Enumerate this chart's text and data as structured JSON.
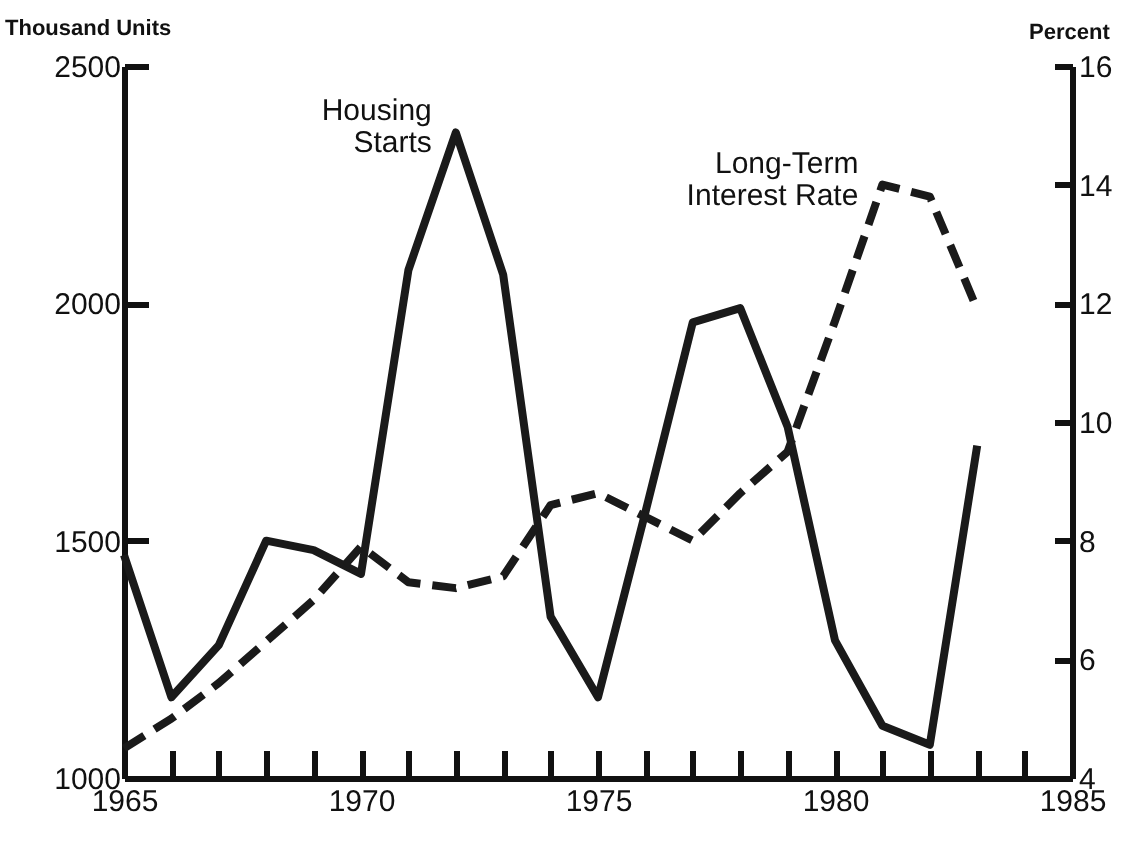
{
  "chart_data": {
    "type": "line",
    "x": [
      1965,
      1966,
      1967,
      1968,
      1969,
      1970,
      1971,
      1972,
      1973,
      1974,
      1975,
      1976,
      1977,
      1978,
      1979,
      1980,
      1981,
      1982,
      1983
    ],
    "series": [
      {
        "name": "Housing Starts",
        "color": "#1a1a1a",
        "line_style": "solid",
        "values": [
          1470,
          1170,
          1280,
          1500,
          1480,
          1430,
          2070,
          2360,
          2060,
          1340,
          1170,
          1560,
          1960,
          1990,
          1740,
          1290,
          1110,
          1070,
          1700
        ]
      },
      {
        "name": "Long-Term Interest Rate",
        "color": "#1a1a1a",
        "line_style": "dashed",
        "axis": "y2",
        "values": [
          4.5,
          5.0,
          5.6,
          6.3,
          7.0,
          7.9,
          7.3,
          7.2,
          7.4,
          8.6,
          8.8,
          8.4,
          8.0,
          8.8,
          9.5,
          11.7,
          14.0,
          13.8,
          11.9
        ]
      }
    ],
    "ylabel": "Thousand Units",
    "y2label": "Percent",
    "xlim": [
      1965,
      1985
    ],
    "xticks": [
      1965,
      {
        "value": 1966,
        "label": null
      },
      {
        "value": 1967,
        "label": null
      },
      {
        "value": 1968,
        "label": null
      },
      {
        "value": 1969,
        "label": null
      },
      1970,
      {
        "value": 1971,
        "label": null
      },
      {
        "value": 1972,
        "label": null
      },
      {
        "value": 1973,
        "label": null
      },
      {
        "value": 1974,
        "label": null
      },
      1975,
      {
        "value": 1976,
        "label": null
      },
      {
        "value": 1977,
        "label": null
      },
      {
        "value": 1978,
        "label": null
      },
      {
        "value": 1979,
        "label": null
      },
      1980,
      {
        "value": 1981,
        "label": null
      },
      {
        "value": 1982,
        "label": null
      },
      {
        "value": 1983,
        "label": null
      },
      {
        "value": 1984,
        "label": null
      },
      1985
    ],
    "ylim": [
      1000,
      2500
    ],
    "yticks": [
      1000,
      1500,
      2000,
      2500
    ],
    "y2lim": [
      4,
      16
    ],
    "y2ticks": [
      4,
      6,
      8,
      10,
      12,
      14,
      16
    ],
    "grid": false,
    "marker": "none"
  }
}
